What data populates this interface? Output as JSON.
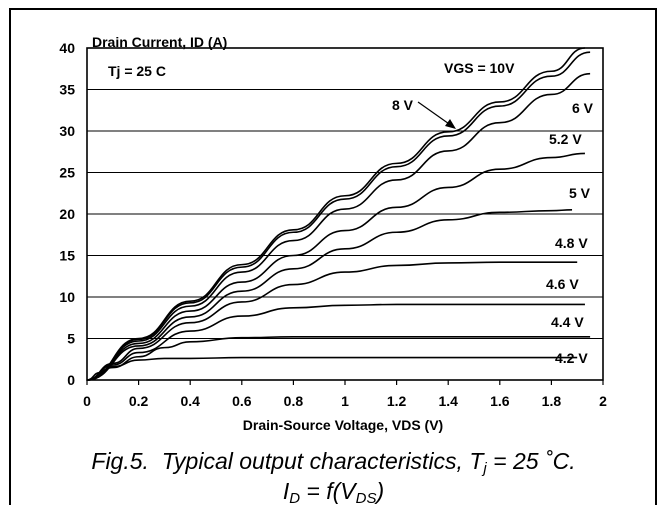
{
  "chart_data": {
    "type": "line",
    "title": "",
    "ylabel": "Drain Current, ID (A)",
    "xlabel": "Drain-Source Voltage, VDS (V)",
    "xlim": [
      0,
      2
    ],
    "ylim": [
      0,
      40
    ],
    "xticks": [
      "0",
      "0.2",
      "0.4",
      "0.6",
      "0.8",
      "1",
      "1.2",
      "1.4",
      "1.6",
      "1.8",
      "2"
    ],
    "yticks": [
      "0",
      "5",
      "10",
      "15",
      "20",
      "25",
      "30",
      "35",
      "40"
    ],
    "annotation": "Tj = 25 C",
    "grid": true,
    "series": [
      {
        "name": "VGS = 10V",
        "x": [
          0,
          0.2,
          0.4,
          0.6,
          0.8,
          1.0,
          1.2,
          1.4,
          1.6,
          1.8,
          1.93
        ],
        "y": [
          0,
          5.0,
          9.5,
          13.9,
          18.1,
          22.2,
          26.1,
          29.9,
          33.5,
          37.2,
          40.0
        ]
      },
      {
        "name": "8 V",
        "x": [
          0,
          0.2,
          0.4,
          0.6,
          0.8,
          1.0,
          1.2,
          1.4,
          1.6,
          1.8,
          1.95
        ],
        "y": [
          0,
          4.9,
          9.3,
          13.6,
          17.8,
          21.8,
          25.7,
          29.4,
          33.0,
          36.6,
          39.5
        ]
      },
      {
        "name": "6 V",
        "x": [
          0,
          0.2,
          0.4,
          0.6,
          0.8,
          1.0,
          1.2,
          1.4,
          1.6,
          1.8,
          1.95
        ],
        "y": [
          0,
          4.7,
          8.9,
          13.0,
          16.8,
          20.6,
          24.1,
          27.6,
          31.0,
          34.4,
          36.9
        ]
      },
      {
        "name": "5.2 V",
        "x": [
          0,
          0.2,
          0.4,
          0.6,
          0.8,
          1.0,
          1.2,
          1.4,
          1.6,
          1.8,
          1.93
        ],
        "y": [
          0,
          4.4,
          8.3,
          11.8,
          15.0,
          18.0,
          20.8,
          23.2,
          25.4,
          26.8,
          27.3
        ]
      },
      {
        "name": "5 V",
        "x": [
          0,
          0.2,
          0.4,
          0.6,
          0.8,
          1.0,
          1.2,
          1.4,
          1.6,
          1.8,
          1.88
        ],
        "y": [
          0,
          4.1,
          7.6,
          10.7,
          13.4,
          15.8,
          17.8,
          19.3,
          20.2,
          20.4,
          20.5
        ]
      },
      {
        "name": "4.8 V",
        "x": [
          0,
          0.1,
          0.2,
          0.4,
          0.6,
          0.8,
          1.0,
          1.2,
          1.4,
          1.6,
          1.8,
          1.9
        ],
        "y": [
          0,
          2.0,
          3.8,
          6.9,
          9.4,
          11.5,
          13.0,
          13.8,
          14.1,
          14.2,
          14.2,
          14.2
        ]
      },
      {
        "name": "4.6 V",
        "x": [
          0,
          0.1,
          0.2,
          0.4,
          0.6,
          0.8,
          1.0,
          1.2,
          1.4,
          1.6,
          1.8,
          1.93
        ],
        "y": [
          0,
          1.8,
          3.3,
          5.9,
          7.7,
          8.7,
          9.0,
          9.1,
          9.1,
          9.1,
          9.1,
          9.1
        ]
      },
      {
        "name": "4.4 V",
        "x": [
          0,
          0.1,
          0.2,
          0.3,
          0.4,
          0.6,
          0.8,
          1.0,
          1.4,
          1.8,
          1.95
        ],
        "y": [
          0,
          1.5,
          2.8,
          3.9,
          4.6,
          5.1,
          5.2,
          5.2,
          5.2,
          5.2,
          5.2
        ]
      },
      {
        "name": "4.2 V",
        "x": [
          0,
          0.05,
          0.1,
          0.2,
          0.3,
          0.4,
          0.6,
          1.0,
          1.4,
          1.8,
          1.9
        ],
        "y": [
          0,
          0.9,
          1.6,
          2.4,
          2.6,
          2.6,
          2.7,
          2.7,
          2.7,
          2.7,
          2.7
        ]
      }
    ]
  },
  "caption": {
    "fig": "Fig.5.",
    "text": "Typical output characteristics, T",
    "sub_j": "j",
    "tail": " = 25 ˚C.",
    "line2_i": "I",
    "line2_d": "D",
    "line2_mid": " = f(V",
    "line2_ds": "DS",
    "line2_end": ")"
  }
}
